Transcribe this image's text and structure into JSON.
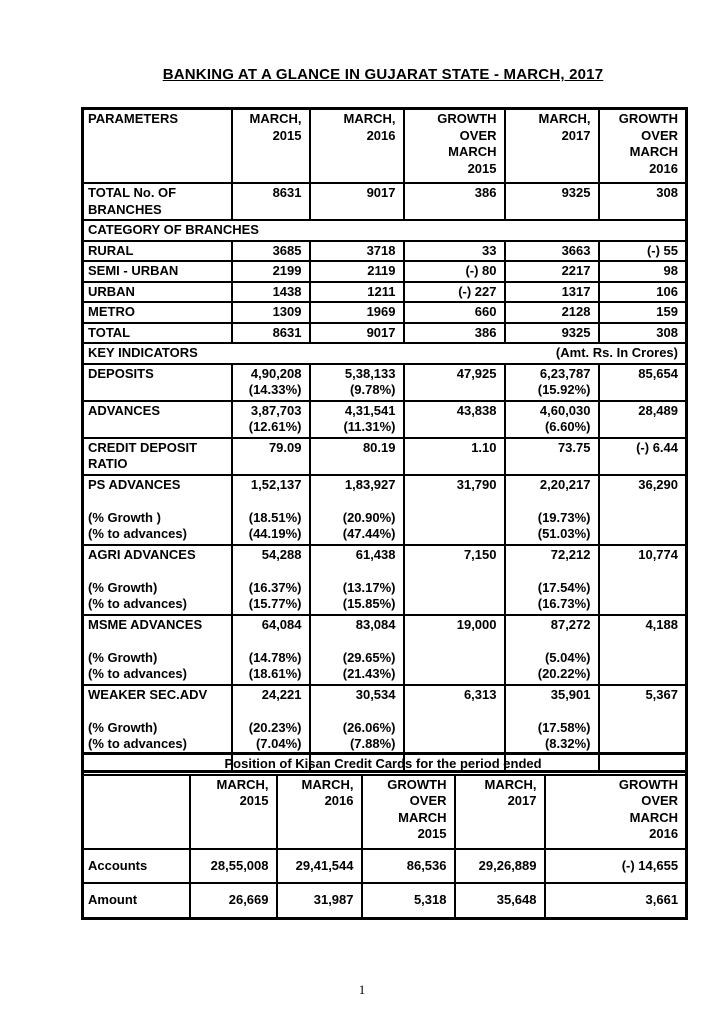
{
  "doc": {
    "title": "BANKING AT A GLANCE IN GUJARAT STATE - MARCH, 2017",
    "page_number": "1"
  },
  "banking_table": {
    "headers": [
      [
        "PARAMETERS"
      ],
      [
        "MARCH,",
        "2015"
      ],
      [
        "MARCH,",
        "2016"
      ],
      [
        "GROWTH",
        "OVER",
        "MARCH",
        "2015"
      ],
      [
        "MARCH,",
        "2017"
      ],
      [
        "GROWTH",
        "OVER",
        "MARCH",
        "2016"
      ]
    ],
    "rows": [
      {
        "cells": [
          [
            "TOTAL No. OF",
            "BRANCHES"
          ],
          [
            "8631"
          ],
          [
            "9017"
          ],
          [
            "386"
          ],
          [
            "9325"
          ],
          [
            "308"
          ]
        ]
      },
      {
        "section": "CATEGORY OF BRANCHES"
      },
      {
        "cells": [
          [
            "RURAL"
          ],
          [
            "3685"
          ],
          [
            "3718"
          ],
          [
            "33"
          ],
          [
            "3663"
          ],
          [
            "(-) 55"
          ]
        ]
      },
      {
        "cells": [
          [
            "SEMI - URBAN"
          ],
          [
            "2199"
          ],
          [
            "2119"
          ],
          [
            "(-) 80"
          ],
          [
            "2217"
          ],
          [
            "98"
          ]
        ]
      },
      {
        "cells": [
          [
            "URBAN"
          ],
          [
            "1438"
          ],
          [
            "1211"
          ],
          [
            "(-) 227"
          ],
          [
            "1317"
          ],
          [
            "106"
          ]
        ]
      },
      {
        "cells": [
          [
            "METRO"
          ],
          [
            "1309"
          ],
          [
            "1969"
          ],
          [
            "660"
          ],
          [
            "2128"
          ],
          [
            "159"
          ]
        ]
      },
      {
        "cells": [
          [
            "TOTAL"
          ],
          [
            "8631"
          ],
          [
            "9017"
          ],
          [
            "386"
          ],
          [
            "9325"
          ],
          [
            "308"
          ]
        ]
      },
      {
        "section": "KEY INDICATORS",
        "note": "(Amt. Rs. In Crores)"
      },
      {
        "cells": [
          [
            "DEPOSITS"
          ],
          [
            "4,90,208",
            "(14.33%)"
          ],
          [
            "5,38,133",
            "(9.78%)"
          ],
          [
            "47,925"
          ],
          [
            "6,23,787",
            "(15.92%)"
          ],
          [
            "85,654"
          ]
        ]
      },
      {
        "cells": [
          [
            "ADVANCES"
          ],
          [
            "3,87,703",
            "(12.61%)"
          ],
          [
            "4,31,541",
            "(11.31%)"
          ],
          [
            "43,838"
          ],
          [
            "4,60,030",
            "(6.60%)"
          ],
          [
            "28,489"
          ]
        ]
      },
      {
        "cells": [
          [
            "CREDIT DEPOSIT",
            "RATIO"
          ],
          [
            "79.09"
          ],
          [
            "80.19"
          ],
          [
            "1.10"
          ],
          [
            "73.75"
          ],
          [
            "(-) 6.44"
          ]
        ]
      },
      {
        "cells": [
          [
            "PS ADVANCES",
            "",
            "(% Growth )",
            "(% to advances)"
          ],
          [
            "1,52,137",
            "",
            "(18.51%)",
            "(44.19%)"
          ],
          [
            "1,83,927",
            "",
            "(20.90%)",
            "(47.44%)"
          ],
          [
            "31,790"
          ],
          [
            "2,20,217",
            "",
            "(19.73%)",
            "(51.03%)"
          ],
          [
            "36,290"
          ]
        ]
      },
      {
        "cells": [
          [
            "AGRI ADVANCES",
            "",
            "(% Growth)",
            "(% to advances)"
          ],
          [
            "54,288",
            "",
            "(16.37%)",
            "(15.77%)"
          ],
          [
            "61,438",
            "",
            "(13.17%)",
            "(15.85%)"
          ],
          [
            "7,150"
          ],
          [
            "72,212",
            "",
            "(17.54%)",
            "(16.73%)"
          ],
          [
            "10,774"
          ]
        ]
      },
      {
        "cells": [
          [
            "MSME ADVANCES",
            "",
            "(% Growth)",
            "(% to advances)"
          ],
          [
            "64,084",
            "",
            "(14.78%)",
            "(18.61%)"
          ],
          [
            "83,084",
            "",
            "(29.65%)",
            "(21.43%)"
          ],
          [
            "19,000"
          ],
          [
            "87,272",
            "",
            "(5.04%)",
            "(20.22%)"
          ],
          [
            "4,188"
          ]
        ]
      },
      {
        "cells": [
          [
            "WEAKER SEC.ADV",
            "",
            "(% Growth)",
            "(% to advances)",
            ""
          ],
          [
            "24,221",
            "",
            "(20.23%)",
            "(7.04%)"
          ],
          [
            "30,534",
            "",
            "(26.06%)",
            "(7.88%)"
          ],
          [
            "6,313"
          ],
          [
            "35,901",
            "",
            "(17.58%)",
            "(8.32%)"
          ],
          [
            "5,367"
          ]
        ]
      }
    ]
  },
  "kisan_table": {
    "title": "Position of Kisan Credit Cards for the period ended",
    "headers": [
      [
        ""
      ],
      [
        "MARCH,",
        "2015"
      ],
      [
        "MARCH,",
        "2016"
      ],
      [
        "GROWTH",
        "OVER",
        "MARCH",
        "2015"
      ],
      [
        "MARCH,",
        "2017"
      ],
      [
        "GROWTH",
        "OVER",
        "MARCH",
        "2016"
      ]
    ],
    "rows": [
      {
        "cells": [
          [
            "Accounts"
          ],
          [
            "28,55,008"
          ],
          [
            "29,41,544"
          ],
          [
            "86,536"
          ],
          [
            "29,26,889"
          ],
          [
            "(-) 14,655"
          ]
        ]
      },
      {
        "cells": [
          [
            "Amount"
          ],
          [
            "26,669"
          ],
          [
            "31,987"
          ],
          [
            "5,318"
          ],
          [
            "35,648"
          ],
          [
            "3,661"
          ]
        ]
      }
    ]
  }
}
